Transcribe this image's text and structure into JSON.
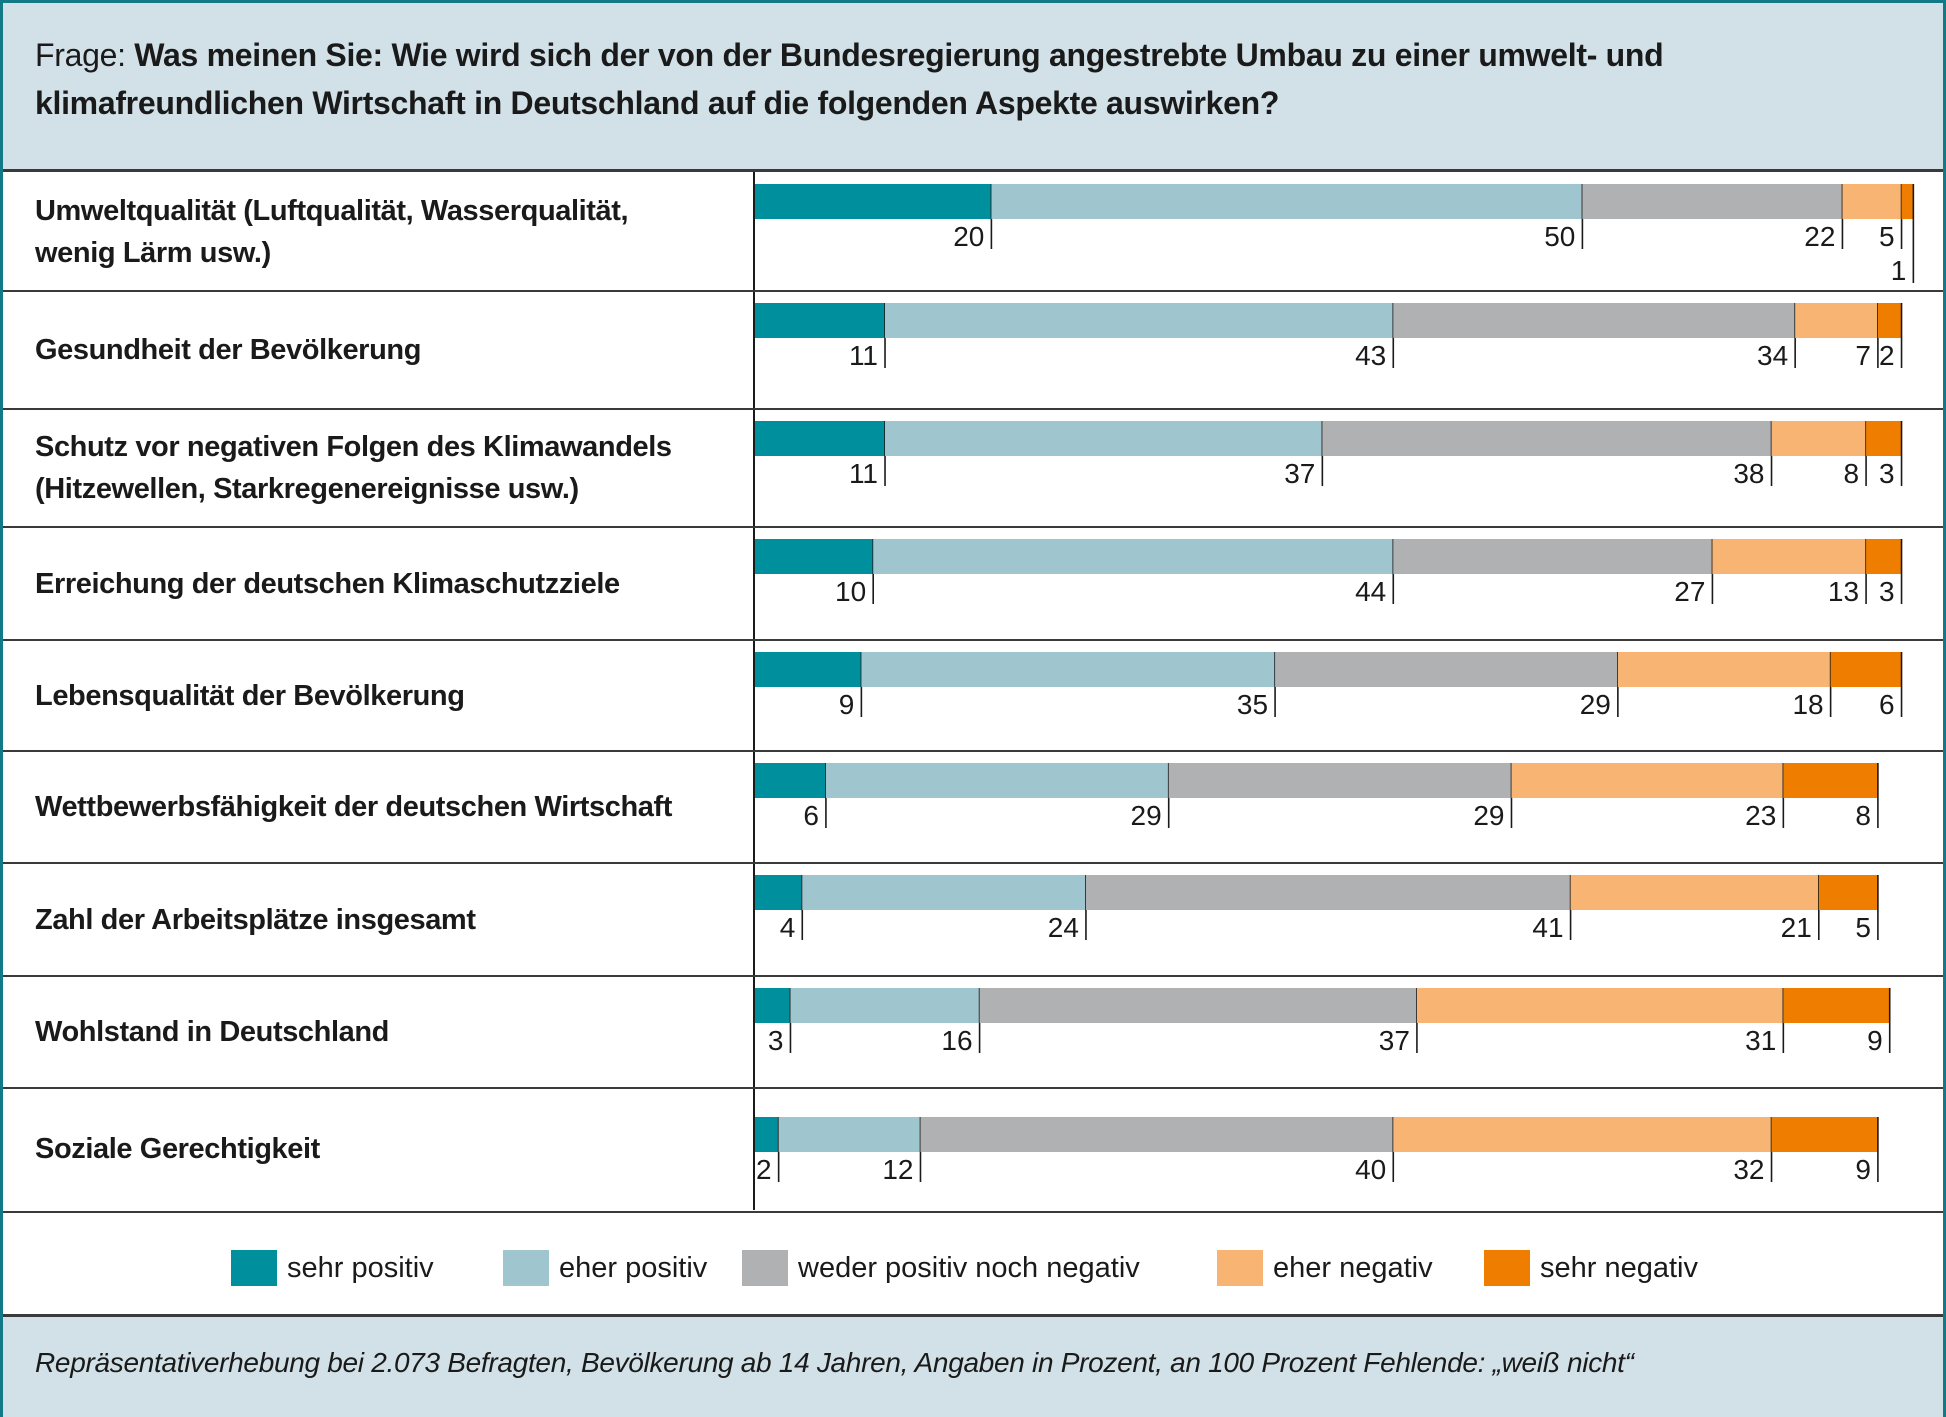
{
  "title": {
    "prefix": "Frage: ",
    "question": "Was meinen Sie: Wie wird sich der von der Bundesregierung angestrebte Umbau zu einer umwelt- und klimafreundlichen Wirtschaft in Deutschland auf die folgenden Aspekte auswirken?"
  },
  "footer": {
    "note": "Repräsentativerhebung bei 2.073 Befragten, Bevölkerung ab 14 Jahren, Angaben in Prozent, an 100 Prozent Fehlende: „weiß nicht“"
  },
  "colors": {
    "sehr_positiv": "#008f9d",
    "eher_positiv": "#9fc5ce",
    "weder": "#b0b1b3",
    "eher_negativ": "#f8b473",
    "sehr_negativ": "#ee7d00"
  },
  "legend": [
    {
      "label": "sehr positiv",
      "color": "#008f9d"
    },
    {
      "label": "eher positiv",
      "color": "#9fc5ce"
    },
    {
      "label": "weder positiv noch negativ",
      "color": "#b0b1b3"
    },
    {
      "label": "eher negativ",
      "color": "#f8b473"
    },
    {
      "label": "sehr negativ",
      "color": "#ee7d00"
    }
  ],
  "chart_data": {
    "type": "bar",
    "orientation": "horizontal",
    "stacked": true,
    "title": "Was meinen Sie: Wie wird sich der von der Bundesregierung angestrebte Umbau zu einer umwelt- und klimafreundlichen Wirtschaft in Deutschland auf die folgenden Aspekte auswirken?",
    "xlabel": "",
    "ylabel": "",
    "xlim": [
      0,
      100
    ],
    "unit": "Prozent",
    "grid": false,
    "legend_position": "bottom",
    "categories": [
      "Umweltqualität (Luftqualität, Wasserqualität, wenig Lärm usw.)",
      "Gesundheit der Bevölkerung",
      "Schutz vor negativen Folgen des Klimawandels (Hitzewellen, Starkregenereignisse usw.)",
      "Erreichung der deutschen Klimaschutzziele",
      "Lebensqualität der Bevölkerung",
      "Wettbewerbsfähigkeit der deutschen Wirtschaft",
      "Zahl der Arbeitsplätze insgesamt",
      "Wohlstand in Deutschland",
      "Soziale Gerechtigkeit"
    ],
    "category_lines": [
      [
        "Umweltqualität (Luftqualität, Wasserqualität,",
        "wenig Lärm usw.)"
      ],
      [
        "Gesundheit der Bevölkerung"
      ],
      [
        "Schutz vor negativen Folgen des Klimawandels",
        "(Hitzewellen, Starkregenereignisse usw.)"
      ],
      [
        "Erreichung der deutschen Klimaschutzziele"
      ],
      [
        "Lebensqualität der Bevölkerung"
      ],
      [
        "Wettbewerbsfähigkeit der deutschen Wirtschaft"
      ],
      [
        "Zahl der Arbeitsplätze insgesamt"
      ],
      [
        "Wohlstand in Deutschland"
      ],
      [
        "Soziale Gerechtigkeit"
      ]
    ],
    "series": [
      {
        "name": "sehr positiv",
        "color": "#008f9d",
        "values": [
          20,
          11,
          11,
          10,
          9,
          6,
          4,
          3,
          2
        ]
      },
      {
        "name": "eher positiv",
        "color": "#9fc5ce",
        "values": [
          50,
          43,
          37,
          44,
          35,
          29,
          24,
          16,
          12
        ]
      },
      {
        "name": "weder positiv noch negativ",
        "color": "#b0b1b3",
        "values": [
          22,
          34,
          38,
          27,
          29,
          29,
          41,
          37,
          40
        ]
      },
      {
        "name": "eher negativ",
        "color": "#f8b473",
        "values": [
          5,
          7,
          8,
          13,
          18,
          23,
          21,
          31,
          32
        ]
      },
      {
        "name": "sehr negativ",
        "color": "#ee7d00",
        "values": [
          1,
          2,
          3,
          3,
          6,
          8,
          5,
          9,
          9
        ]
      }
    ],
    "note": "an 100 Prozent Fehlende: „weiß nicht“"
  }
}
